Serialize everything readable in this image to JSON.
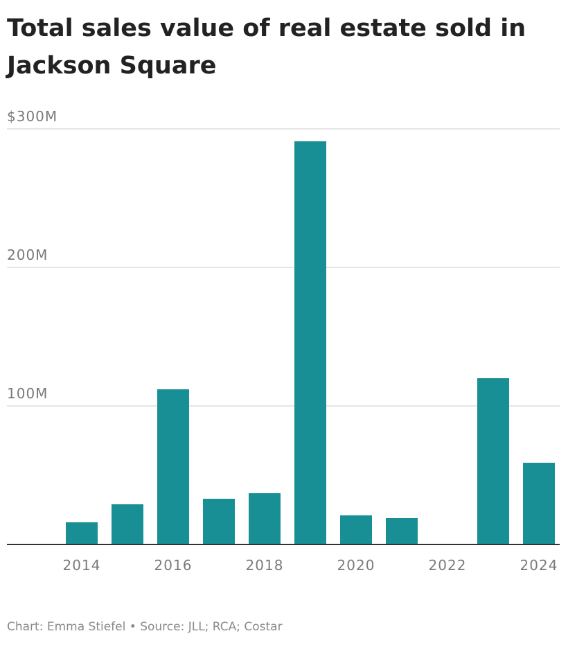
{
  "title_lines": [
    "Total sales value of real estate sold in",
    "Jackson Square"
  ],
  "footer": {
    "chart_credit": "Chart: Emma Stiefel",
    "separator": " • ",
    "source": "Source: JLL; RCA; Costar"
  },
  "colors": {
    "bar": "#178f94",
    "grid": "#dddddd",
    "axis": "#333333"
  },
  "chart_data": {
    "type": "bar",
    "title": "Total sales value of real estate sold in Jackson Square",
    "xlabel": "",
    "ylabel": "",
    "categories": [
      "2014",
      "2015",
      "2016",
      "2017",
      "2018",
      "2019",
      "2020",
      "2021",
      "2022",
      "2023",
      "2024"
    ],
    "values": [
      16,
      29,
      112,
      33,
      37,
      291,
      21,
      19,
      0,
      120,
      59
    ],
    "ylim": [
      0,
      300
    ],
    "yticks": [
      {
        "value": 100,
        "label": "100M"
      },
      {
        "value": 200,
        "label": "200M"
      },
      {
        "value": 300,
        "label": "$300M"
      }
    ],
    "xtick_labels": [
      "2014",
      "2016",
      "2018",
      "2020",
      "2022",
      "2024"
    ],
    "grid": true,
    "legend": "none"
  }
}
